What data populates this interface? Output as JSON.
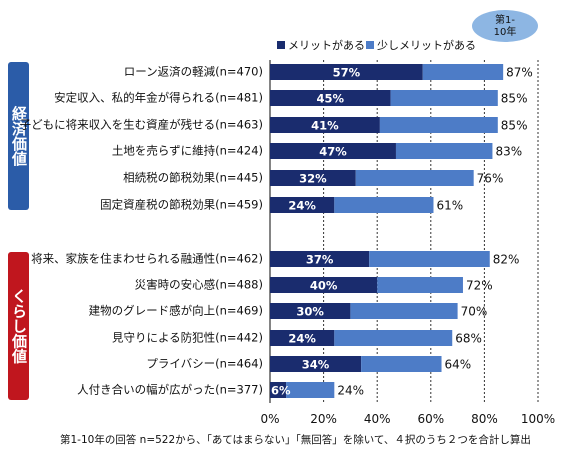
{
  "badge": {
    "line1": "第1-",
    "line2": "10年"
  },
  "groups": [
    {
      "label": "経済価値",
      "color": "#2b5ca8"
    },
    {
      "label": "くらし価値",
      "color": "#c0161e"
    }
  ],
  "footnote": "第1-10年の回答 n=522から、「あてはまらない」「無回答」を除いて、４択のうち２つを合計し算出",
  "colors": {
    "dark": "#1a2c6e",
    "light": "#4d7cc7",
    "grid": "#333333"
  },
  "chart_data": {
    "type": "bar",
    "orientation": "horizontal",
    "stacked": true,
    "xlim": [
      0,
      100
    ],
    "xticks": [
      "0%",
      "20%",
      "40%",
      "60%",
      "80%",
      "100%"
    ],
    "legend": {
      "placement": "top",
      "entries": [
        "メリットがある",
        "少しメリットがある"
      ]
    },
    "categories": [
      "ローン返済の軽減(n=470)",
      "安定収入、私的年金が得られる(n=481)",
      "子どもに将来収入を生む資産が残せる(n=463)",
      "土地を売らずに維持(n=424)",
      "相続税の節税効果(n=445)",
      "固定資産税の節税効果(n=459)",
      "将来、家族を住まわせられる融通性(n=462)",
      "災害時の安心感(n=488)",
      "建物のグレード感が向上(n=469)",
      "見守りによる防犯性(n=442)",
      "プライバシー(n=464)",
      "人付き合いの幅が広がった(n=377)"
    ],
    "group_of_category": [
      0,
      0,
      0,
      0,
      0,
      0,
      1,
      1,
      1,
      1,
      1,
      1
    ],
    "series": [
      {
        "name": "メリットがある",
        "values": [
          57,
          45,
          41,
          47,
          32,
          24,
          37,
          40,
          30,
          24,
          34,
          6
        ]
      },
      {
        "name": "少しメリットがある",
        "values": [
          30,
          40,
          44,
          36,
          44,
          37,
          45,
          32,
          40,
          44,
          30,
          18
        ]
      }
    ],
    "inner_labels": [
      "57%",
      "45%",
      "41%",
      "47%",
      "32%",
      "24%",
      "37%",
      "40%",
      "30%",
      "24%",
      "34%",
      "6%"
    ],
    "total_labels": [
      "87%",
      "85%",
      "85%",
      "83%",
      "76%",
      "61%",
      "82%",
      "72%",
      "70%",
      "68%",
      "64%",
      "24%"
    ]
  }
}
